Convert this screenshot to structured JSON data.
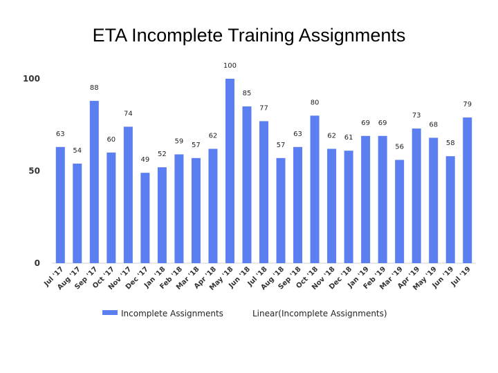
{
  "chart_data": {
    "type": "bar",
    "title": "ETA Incomplete Training Assignments",
    "xlabel": "",
    "ylabel": "",
    "ylim": [
      0,
      100
    ],
    "yticks": [
      "0",
      "50",
      "100"
    ],
    "grid": false,
    "bar_color": "#5b7ff0",
    "categories": [
      "Jul '17",
      "Aug '17",
      "Sep '17",
      "Oct '17",
      "Nov '17",
      "Dec '17",
      "Jan '18",
      "Feb '18",
      "Mar '18",
      "Apr '18",
      "May '18",
      "Jun '18",
      "Jul '18",
      "Aug '18",
      "Sep '18",
      "Oct '18",
      "Nov '18",
      "Dec '18",
      "Jan '19",
      "Feb '19",
      "Mar '19",
      "Apr '19",
      "May '19",
      "Jun '19",
      "Jul '19"
    ],
    "series": [
      {
        "name": "Incomplete Assignments",
        "values": [
          63,
          54,
          88,
          60,
          74,
          49,
          52,
          59,
          57,
          62,
          100,
          85,
          77,
          57,
          63,
          80,
          62,
          61,
          69,
          69,
          56,
          73,
          68,
          58,
          79
        ]
      }
    ],
    "legend": {
      "position": "bottom",
      "entries": [
        "Incomplete Assignments",
        "Linear(Incomplete Assignments)"
      ]
    }
  }
}
